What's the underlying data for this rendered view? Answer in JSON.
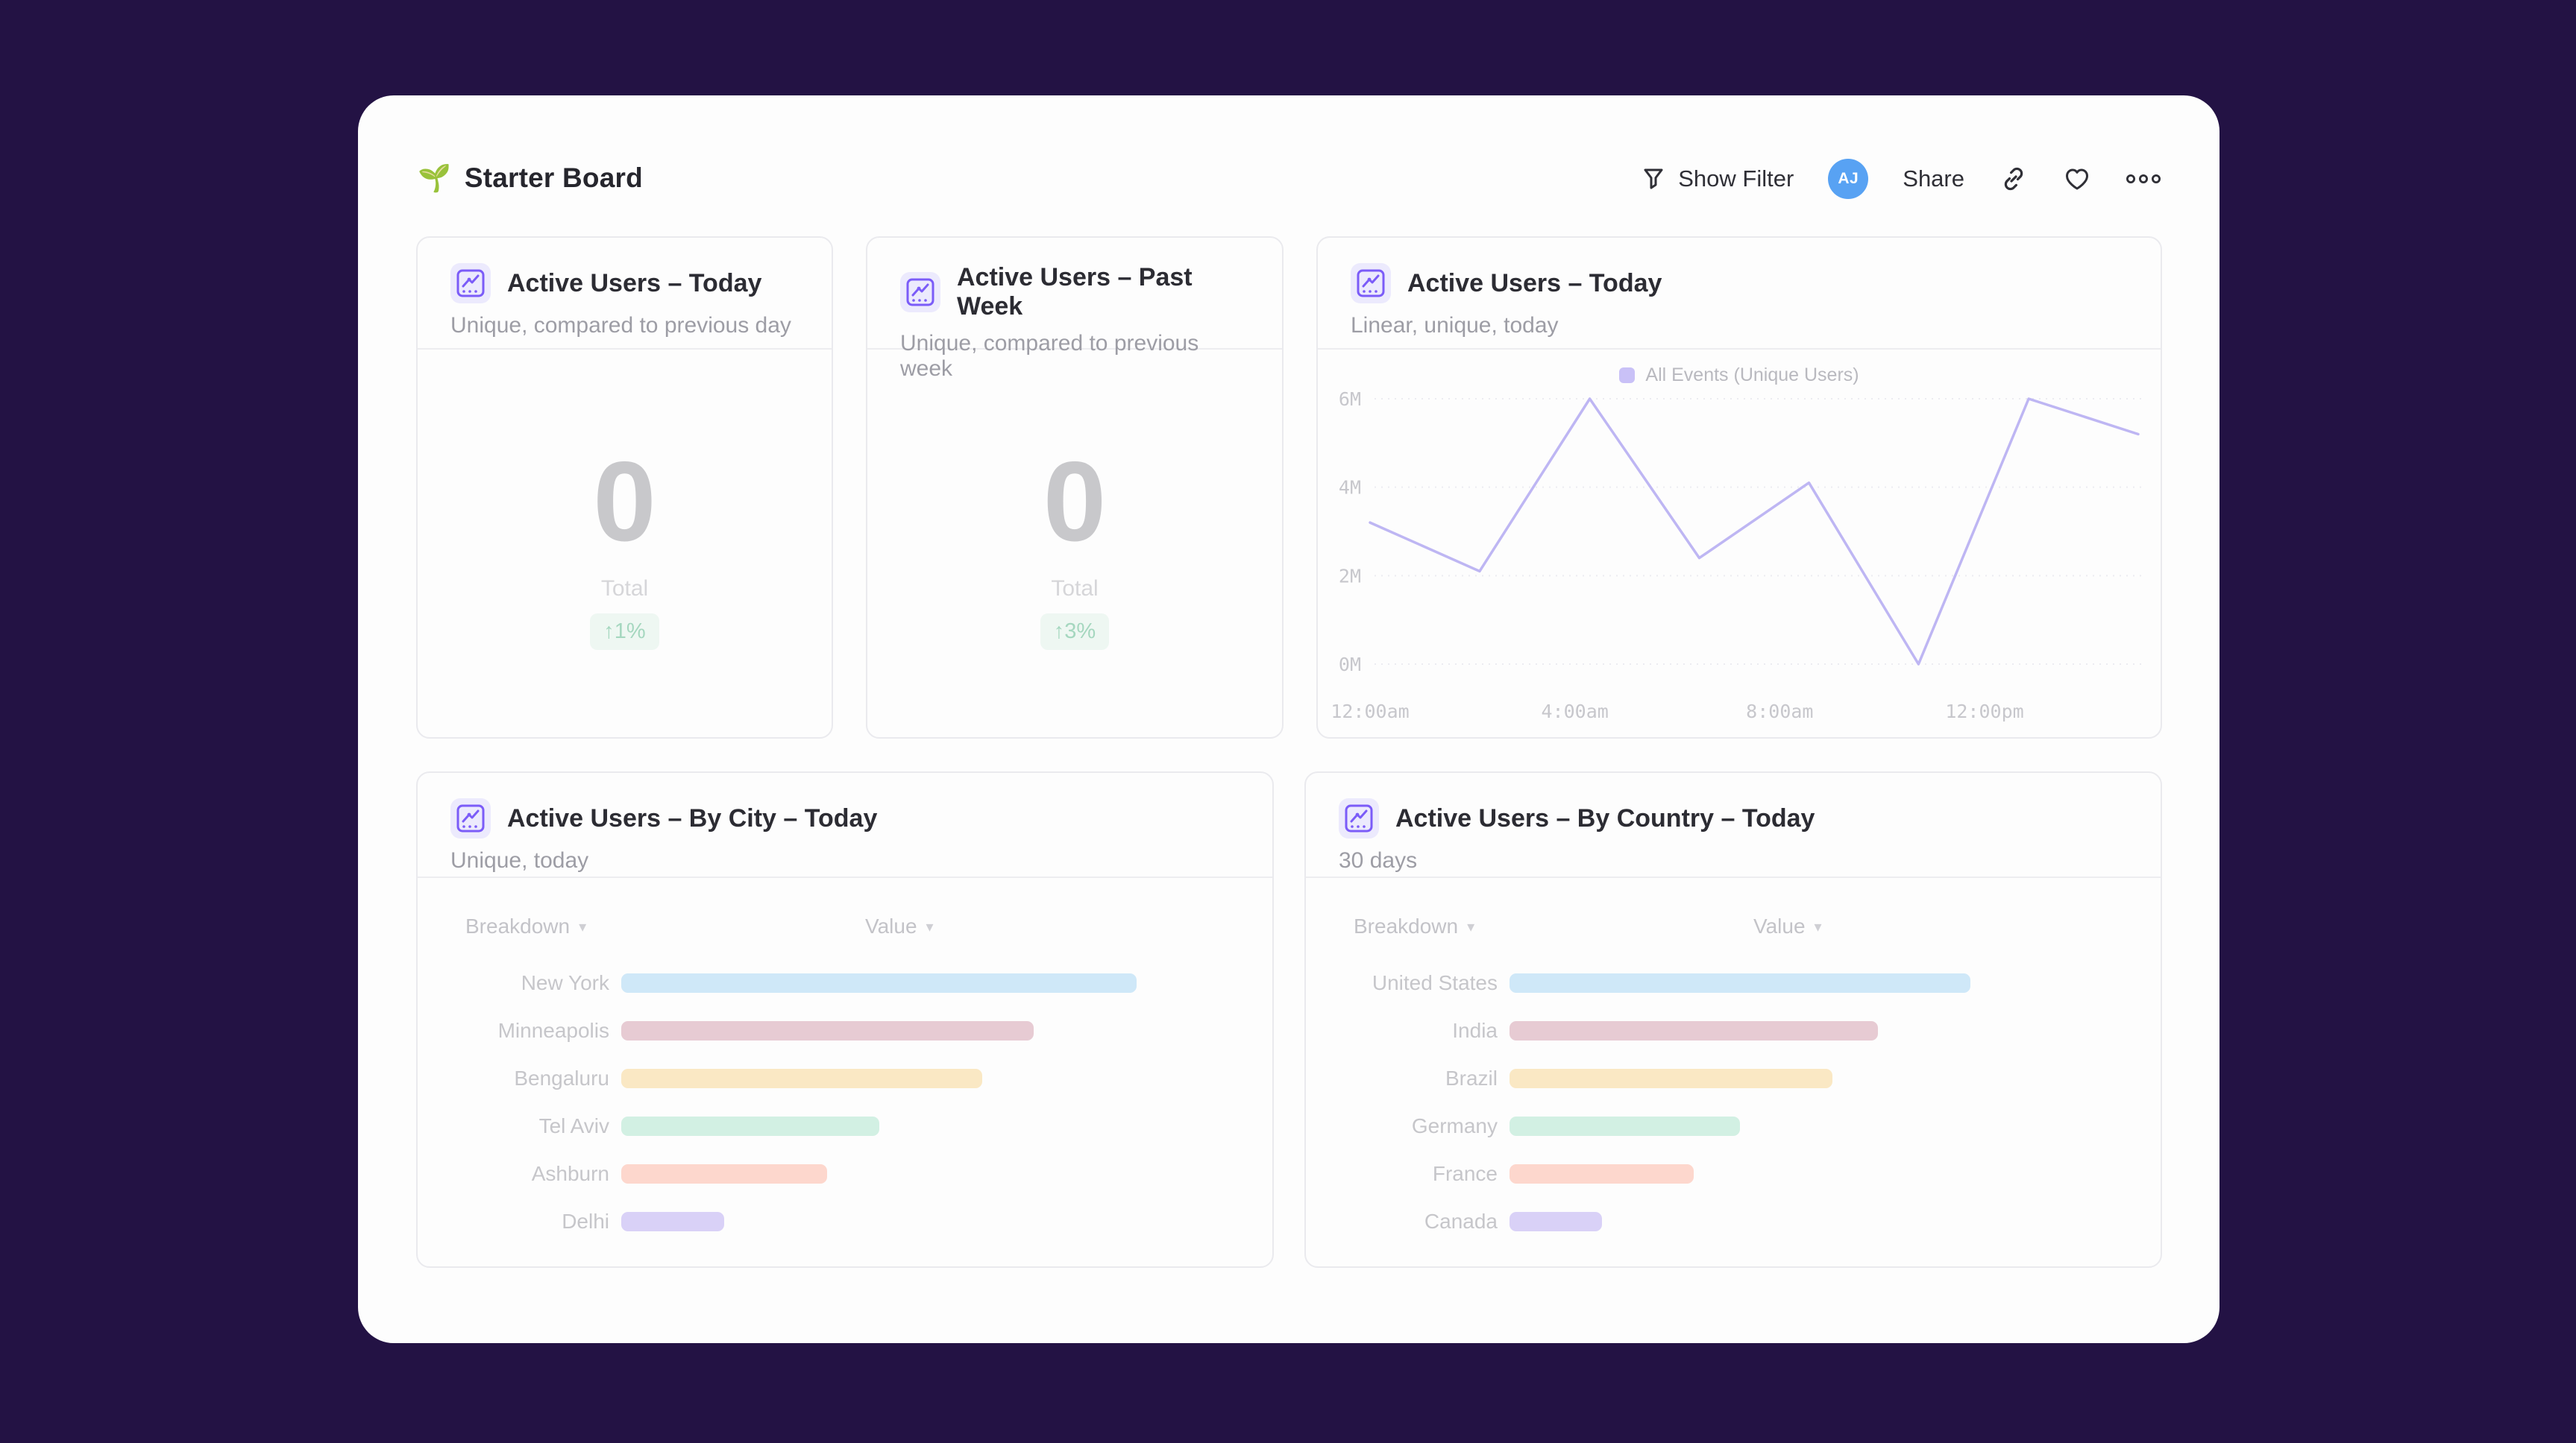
{
  "colors": {
    "background": "#231244",
    "panel": "#fdfdfd",
    "accent_purple": "#7b5cf8",
    "icon_chip_bg": "#eceafd",
    "avatar_blue": "#58a2f3",
    "toolbar_icon": "#2f2f36",
    "delta_green": "#a5d7bf",
    "delta_green_bg": "#eef7f2",
    "line_purple": "#beb6f3",
    "legend_square": "#c9c1f7",
    "gridline": "#ececf1"
  },
  "board": {
    "title": "Starter Board",
    "title_icon_glyph": "🌱",
    "title_icon_name": "seedling-icon"
  },
  "toolbar": {
    "show_filter": "Show Filter",
    "avatar_initials": "AJ",
    "share": "Share",
    "icon_names": [
      "funnel-filter-icon",
      "link-icon",
      "heart-icon",
      "more-ellipsis-icon"
    ]
  },
  "stat_cards": [
    {
      "title": "Active Users – Today",
      "subtitle": "Unique, compared to previous day",
      "value": "0",
      "value_label": "Total",
      "delta": "↑1%"
    },
    {
      "title": "Active Users – Past Week",
      "subtitle": "Unique, compared to previous week",
      "value": "0",
      "value_label": "Total",
      "delta": "↑3%"
    }
  ],
  "line_card": {
    "title": "Active Users – Today",
    "subtitle": "Linear, unique, today",
    "legend": "All Events (Unique Users)"
  },
  "city_card": {
    "title": "Active Users – By City – Today",
    "subtitle": "Unique, today",
    "col_breakdown": "Breakdown",
    "col_value": "Value"
  },
  "country_card": {
    "title": "Active Users – By Country – Today",
    "subtitle": "30 days",
    "col_breakdown": "Breakdown",
    "col_value": "Value"
  },
  "chart_data": [
    {
      "type": "line",
      "title": "Active Users – Today",
      "legend_entries": [
        "All Events (Unique Users)"
      ],
      "legend_position": "top-center",
      "grid": "horizontal-dotted",
      "x_hours": [
        0,
        2.14,
        4.29,
        6.43,
        8.57,
        10.71,
        12.86,
        15
      ],
      "series": [
        {
          "name": "All Events (Unique Users)",
          "values_millions": [
            3.2,
            2.1,
            6.0,
            2.4,
            4.1,
            0.0,
            6.0,
            5.2
          ]
        }
      ],
      "ylim_millions": [
        0,
        6
      ],
      "y_tick_values": [
        0,
        2,
        4,
        6
      ],
      "y_tick_labels": [
        "0M",
        "2M",
        "4M",
        "6M"
      ],
      "xlim_hours": [
        0,
        15
      ],
      "x_tick_hours": [
        0,
        4,
        8,
        12
      ],
      "x_tick_labels": [
        "12:00am",
        "4:00am",
        "8:00am",
        "12:00pm"
      ]
    },
    {
      "type": "bar",
      "orientation": "horizontal",
      "title": "Active Users – By City – Today",
      "categories": [
        "New York",
        "Minneapolis",
        "Bengaluru",
        "Tel Aviv",
        "Ashburn",
        "Delhi"
      ],
      "values_relative": [
        100,
        80,
        70,
        50,
        40,
        20
      ],
      "bar_colors": [
        "#cfe8f8",
        "#e7cbd3",
        "#fae8c4",
        "#d2f0e3",
        "#fdd7cd",
        "#d9d1f7"
      ],
      "max_bar_width_pct": 85
    },
    {
      "type": "bar",
      "orientation": "horizontal",
      "title": "Active Users – By Country – Today",
      "categories": [
        "United States",
        "India",
        "Brazil",
        "Germany",
        "France",
        "Canada"
      ],
      "values_relative": [
        100,
        80,
        70,
        50,
        40,
        20
      ],
      "bar_colors": [
        "#cfe8f8",
        "#e7cbd3",
        "#fae8c4",
        "#d2f0e3",
        "#fdd7cd",
        "#d9d1f7"
      ],
      "max_bar_width_pct": 76
    }
  ]
}
